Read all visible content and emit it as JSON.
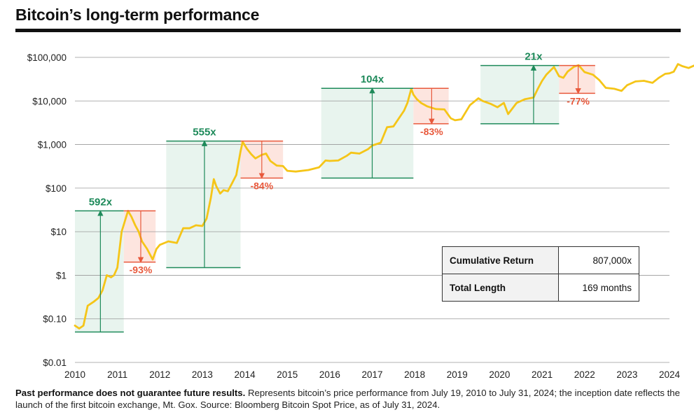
{
  "title": "Bitcoin’s long-term performance",
  "chart_data": {
    "type": "line",
    "title": "Bitcoin’s long-term performance",
    "y_scale": "log",
    "ylim": [
      0.01,
      100000
    ],
    "xlim": [
      2010,
      2024
    ],
    "y_ticks": [
      {
        "value": 0.01,
        "label": "$0.01"
      },
      {
        "value": 0.1,
        "label": "$0.10"
      },
      {
        "value": 1,
        "label": "$1"
      },
      {
        "value": 10,
        "label": "$10"
      },
      {
        "value": 100,
        "label": "$100"
      },
      {
        "value": 1000,
        "label": "$1,000"
      },
      {
        "value": 10000,
        "label": "$10,000"
      },
      {
        "value": 100000,
        "label": "$100,000"
      }
    ],
    "x_ticks": [
      "2010",
      "2011",
      "2012",
      "2013",
      "2014",
      "2015",
      "2016",
      "2017",
      "2018",
      "2019",
      "2020",
      "2021",
      "2022",
      "2023",
      "2024"
    ],
    "grid": "horizontal",
    "series": [
      {
        "color": "#f5c518",
        "x": [
          2010.0,
          2010.1,
          2010.2,
          2010.3,
          2010.45,
          2010.55,
          2010.65,
          2010.75,
          2010.85,
          2010.92,
          2011.0,
          2011.1,
          2011.25,
          2011.33,
          2011.42,
          2011.5,
          2011.58,
          2011.7,
          2011.83,
          2011.92,
          2012.0,
          2012.2,
          2012.4,
          2012.55,
          2012.7,
          2012.85,
          2013.0,
          2013.1,
          2013.2,
          2013.27,
          2013.33,
          2013.42,
          2013.5,
          2013.6,
          2013.7,
          2013.8,
          2013.9,
          2013.95,
          2014.05,
          2014.15,
          2014.25,
          2014.4,
          2014.5,
          2014.6,
          2014.75,
          2014.9,
          2015.0,
          2015.2,
          2015.5,
          2015.75,
          2015.9,
          2016.0,
          2016.2,
          2016.4,
          2016.5,
          2016.7,
          2016.9,
          2017.0,
          2017.2,
          2017.35,
          2017.5,
          2017.65,
          2017.75,
          2017.83,
          2017.92,
          2017.97,
          2018.05,
          2018.15,
          2018.3,
          2018.5,
          2018.7,
          2018.85,
          2018.95,
          2019.1,
          2019.3,
          2019.5,
          2019.6,
          2019.8,
          2019.95,
          2020.1,
          2020.2,
          2020.4,
          2020.6,
          2020.8,
          2020.9,
          2021.0,
          2021.1,
          2021.28,
          2021.4,
          2021.5,
          2021.6,
          2021.75,
          2021.86,
          2022.0,
          2022.2,
          2022.35,
          2022.5,
          2022.7,
          2022.87,
          2023.0,
          2023.2,
          2023.4,
          2023.6,
          2023.75,
          2023.9,
          2024.0,
          2024.1,
          2024.2,
          2024.3,
          2024.45,
          2024.58
        ],
        "y": [
          0.07,
          0.06,
          0.07,
          0.2,
          0.25,
          0.3,
          0.45,
          1.0,
          0.9,
          1.0,
          1.5,
          10,
          30,
          22,
          14,
          10,
          6,
          4,
          2.3,
          4,
          5,
          6,
          5.5,
          12,
          12,
          14,
          13.5,
          20,
          60,
          160,
          110,
          75,
          90,
          85,
          130,
          200,
          700,
          1150,
          800,
          600,
          480,
          580,
          620,
          420,
          330,
          320,
          250,
          240,
          260,
          300,
          430,
          420,
          430,
          550,
          650,
          620,
          780,
          950,
          1100,
          2500,
          2600,
          4300,
          6000,
          9000,
          19000,
          14000,
          11000,
          9000,
          7500,
          6500,
          6400,
          4000,
          3600,
          3800,
          8000,
          11500,
          10000,
          8500,
          7200,
          9000,
          5000,
          9000,
          11000,
          12000,
          19000,
          29000,
          40000,
          60000,
          37000,
          34000,
          47000,
          61000,
          66000,
          46000,
          40000,
          30000,
          20000,
          19000,
          17000,
          23000,
          28000,
          29000,
          26000,
          34000,
          42000,
          43000,
          47000,
          70000,
          63000,
          57000,
          65000
        ]
      }
    ],
    "cycles": [
      {
        "type": "gain",
        "label": "592x",
        "x0": 2010.0,
        "x1": 2011.15,
        "arrow_x": 2010.6,
        "low": 0.05,
        "high": 30
      },
      {
        "type": "loss",
        "label": "-93%",
        "x0": 2011.15,
        "x1": 2011.9,
        "arrow_x": 2011.55,
        "low": 2,
        "high": 30
      },
      {
        "type": "gain",
        "label": "555x",
        "x0": 2012.15,
        "x1": 2013.9,
        "arrow_x": 2013.05,
        "low": 1.5,
        "high": 1200
      },
      {
        "type": "loss",
        "label": "-84%",
        "x0": 2013.9,
        "x1": 2014.9,
        "arrow_x": 2014.4,
        "low": 170,
        "high": 1200
      },
      {
        "type": "gain",
        "label": "104x",
        "x0": 2015.8,
        "x1": 2017.97,
        "arrow_x": 2017.0,
        "low": 170,
        "high": 19500
      },
      {
        "type": "loss",
        "label": "-83%",
        "x0": 2017.97,
        "x1": 2018.8,
        "arrow_x": 2018.4,
        "low": 3000,
        "high": 19500
      },
      {
        "type": "gain",
        "label": "21x",
        "x0": 2019.55,
        "x1": 2021.4,
        "arrow_x": 2020.8,
        "low": 3000,
        "high": 65000
      },
      {
        "type": "loss",
        "label": "-77%",
        "x0": 2021.4,
        "x1": 2022.25,
        "arrow_x": 2021.85,
        "low": 15000,
        "high": 65000
      }
    ]
  },
  "table": {
    "rows": [
      {
        "label": "Cumulative Return",
        "value": "807,000x"
      },
      {
        "label": "Total Length",
        "value": "169 months"
      }
    ]
  },
  "footnote": {
    "bold": "Past performance does not guarantee future results.",
    "text": " Represents bitcoin’s price performance from July 19, 2010 to July 31, 2024; the inception date reflects the launch of the first bitcoin exchange, Mt. Gox. Source: Bloomberg Bitcoin Spot Price, as of July 31, 2024."
  },
  "colors": {
    "price_line": "#f5c518",
    "gain": "#1e8a5a",
    "gain_fill": "#e8f4ee",
    "loss": "#e8593c",
    "loss_fill": "#fde5df",
    "grid": "#999999"
  }
}
